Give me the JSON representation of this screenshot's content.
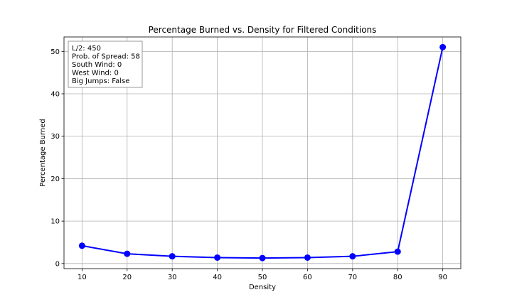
{
  "chart_data": {
    "type": "line",
    "title": "Percentage Burned vs. Density for Filtered Conditions",
    "xlabel": "Density",
    "ylabel": "Percentage Burned",
    "x": [
      10,
      20,
      30,
      40,
      50,
      60,
      70,
      80,
      90
    ],
    "series": [
      {
        "values": [
          4.2,
          2.3,
          1.7,
          1.4,
          1.3,
          1.4,
          1.7,
          2.8,
          51.0
        ]
      }
    ],
    "xlim": [
      6,
      94
    ],
    "ylim": [
      -1.2,
      53.4
    ],
    "xticks": [
      10,
      20,
      30,
      40,
      50,
      60,
      70,
      80,
      90
    ],
    "yticks": [
      0,
      10,
      20,
      30,
      40,
      50
    ],
    "grid": true,
    "line_color": "#0000ff",
    "marker": "circle",
    "annotation_box": {
      "placement": "top-left",
      "lines": [
        "L/2: 450",
        "Prob. of Spread: 58",
        "South Wind: 0",
        "West Wind: 0",
        "Big Jumps: False"
      ]
    }
  }
}
